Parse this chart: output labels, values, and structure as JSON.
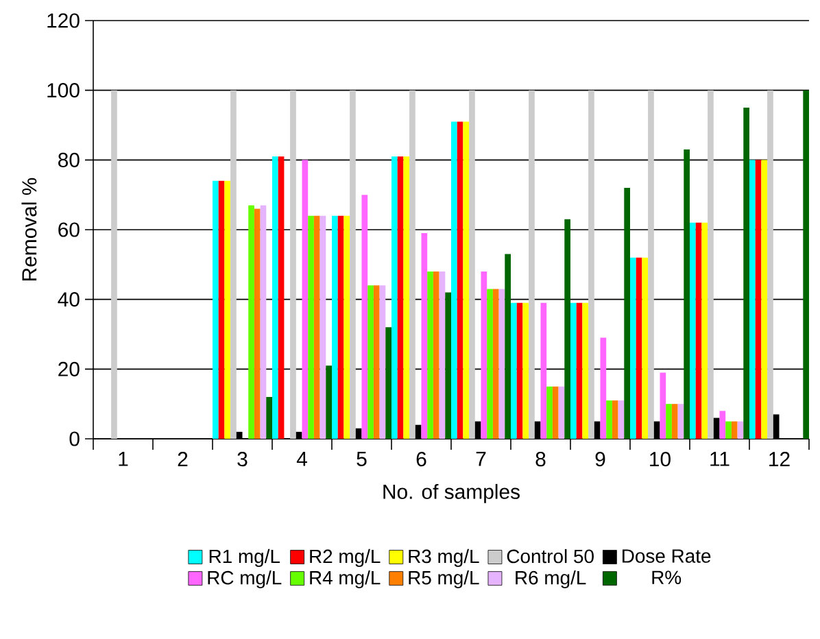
{
  "chart_data": {
    "type": "bar",
    "xlabel": "No. of samples",
    "ylabel": "Removal %",
    "categories": [
      "1",
      "2",
      "3",
      "4",
      "5",
      "6",
      "7",
      "8",
      "9",
      "10",
      "11",
      "12"
    ],
    "series": [
      {
        "name": "R1 mg/L",
        "color": "#00ffff",
        "values": [
          0,
          0,
          74,
          81,
          64,
          81,
          91,
          39,
          39,
          52,
          62,
          80
        ]
      },
      {
        "name": "R2 mg/L",
        "color": "#ff0000",
        "values": [
          0,
          0,
          74,
          81,
          64,
          81,
          91,
          39,
          39,
          52,
          62,
          80
        ]
      },
      {
        "name": "R3 mg/L",
        "color": "#ffff00",
        "values": [
          0,
          0,
          74,
          0,
          64,
          81,
          91,
          39,
          39,
          52,
          62,
          80
        ]
      },
      {
        "name": "Control 50",
        "color": "#cccccc",
        "values": [
          100,
          0,
          100,
          100,
          100,
          100,
          100,
          100,
          100,
          100,
          100,
          100
        ]
      },
      {
        "name": "Dose Rate",
        "color": "#000000",
        "values": [
          0,
          0,
          2,
          2,
          3,
          4,
          5,
          5,
          5,
          5,
          6,
          7
        ]
      },
      {
        "name": "RC mg/L",
        "color": "#ff66ff",
        "values": [
          0,
          0,
          0,
          80,
          70,
          59,
          48,
          39,
          29,
          19,
          8,
          0
        ]
      },
      {
        "name": "R4 mg/L",
        "color": "#66ff00",
        "values": [
          0,
          0,
          67,
          64,
          44,
          48,
          43,
          15,
          11,
          10,
          5,
          0
        ]
      },
      {
        "name": "R5 mg/L",
        "color": "#ff8000",
        "values": [
          0,
          0,
          66,
          64,
          44,
          48,
          43,
          15,
          11,
          10,
          5,
          0
        ]
      },
      {
        "name": "R6 mg/L",
        "color": "#e6b3ff",
        "values": [
          0,
          0,
          67,
          64,
          44,
          48,
          43,
          15,
          11,
          10,
          5,
          0
        ]
      },
      {
        "name": "R%",
        "color": "#006600",
        "values": [
          0,
          0,
          12,
          21,
          32,
          42,
          53,
          63,
          72,
          83,
          95,
          100
        ]
      }
    ],
    "ylim": [
      0,
      120
    ],
    "yticks": [
      0,
      20,
      40,
      60,
      80,
      100,
      120
    ],
    "grid": "y",
    "legend": "bottom"
  }
}
